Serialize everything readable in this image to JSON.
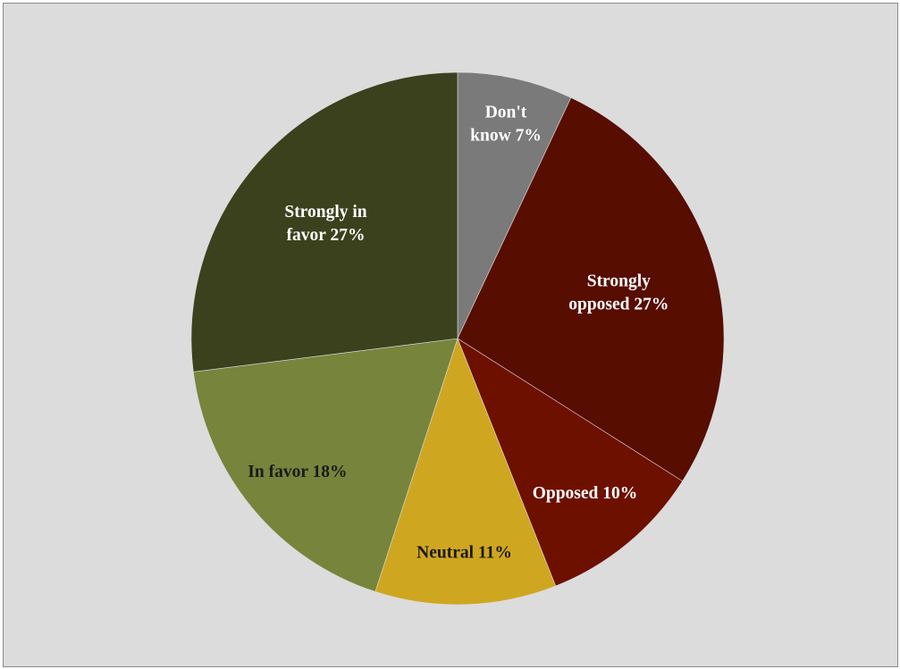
{
  "chart_data": {
    "type": "pie",
    "title": "",
    "start_angle_deg": 0,
    "direction": "clockwise",
    "legend": "none",
    "slices": [
      {
        "label_lines": [
          "Don't",
          "know 7%"
        ],
        "value": 7,
        "color": "#7a7a7a",
        "label_color": "#ffffff"
      },
      {
        "label_lines": [
          "Strongly",
          "opposed 27%"
        ],
        "value": 27,
        "color": "#570d00",
        "label_color": "#ffffff"
      },
      {
        "label_lines": [
          "Opposed 10%"
        ],
        "value": 10,
        "color": "#6e1000",
        "label_color": "#ffffff"
      },
      {
        "label_lines": [
          "Neutral 11%"
        ],
        "value": 11,
        "color": "#cfa620",
        "label_color": "#1a1a1a"
      },
      {
        "label_lines": [
          "In favor 18%"
        ],
        "value": 18,
        "color": "#77843c",
        "label_color": "#1a1a1a"
      },
      {
        "label_lines": [
          "Strongly in",
          "favor 27%"
        ],
        "value": 27,
        "color": "#3b411d",
        "label_color": "#ffffff"
      }
    ]
  }
}
